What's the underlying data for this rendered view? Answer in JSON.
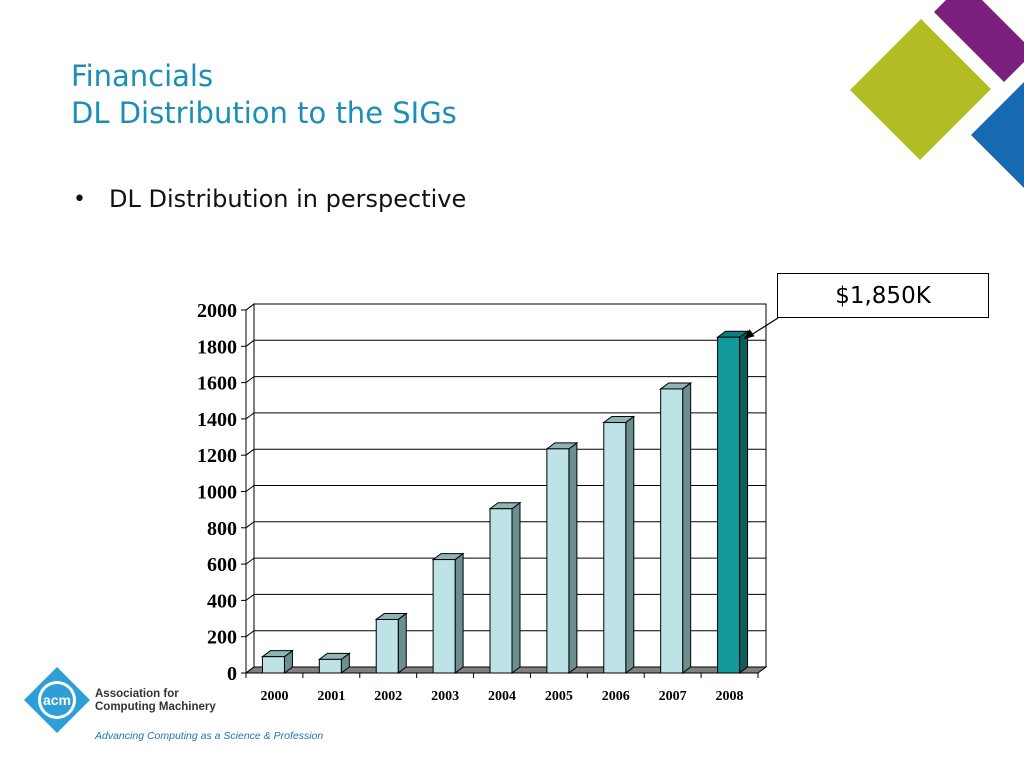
{
  "slide": {
    "title_line1": "Financials",
    "title_line2": "DL Distribution to the SIGs",
    "bullet": "DL Distribution in perspective",
    "callout": "$1,850K"
  },
  "branding": {
    "logo_mark": "acm",
    "org_line1": "Association for",
    "org_line2": "Computing Machinery",
    "tagline": "Advancing Computing as a Science & Profession"
  },
  "colors": {
    "title": "#1a8fb5",
    "bar_default": "#bde3e6",
    "bar_highlight": "#129a9a",
    "deco_purple": "#7b1f7c",
    "deco_green": "#b2bd23",
    "deco_blue": "#1769b0",
    "logo_blue": "#2e9fd6"
  },
  "chart_data": {
    "type": "bar",
    "categories": [
      "2000",
      "2001",
      "2002",
      "2003",
      "2004",
      "2005",
      "2006",
      "2007",
      "2008"
    ],
    "values": [
      90,
      75,
      295,
      625,
      905,
      1235,
      1380,
      1565,
      1850
    ],
    "highlight_index": 8,
    "ylim": [
      0,
      2000
    ],
    "yticks": [
      0,
      200,
      400,
      600,
      800,
      1000,
      1200,
      1400,
      1600,
      1800,
      2000
    ],
    "grid": true,
    "style": "3d"
  }
}
